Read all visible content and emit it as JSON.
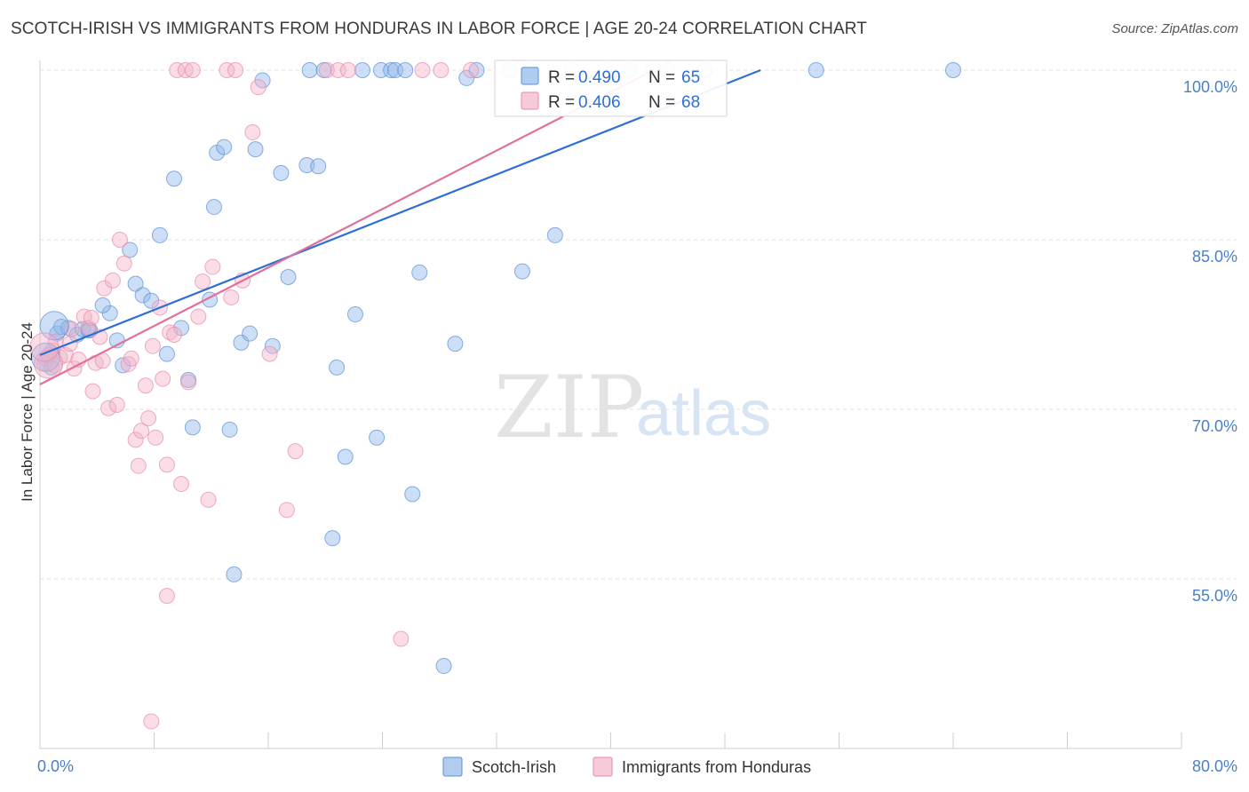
{
  "title": "SCOTCH-IRISH VS IMMIGRANTS FROM HONDURAS IN LABOR FORCE | AGE 20-24 CORRELATION CHART",
  "source": "Source: ZipAtlas.com",
  "watermark": {
    "zip": "ZIP",
    "atlas": "atlas"
  },
  "chart_data": {
    "type": "scatter",
    "ylabel": "In Labor Force | Age 20-24",
    "xlim": [
      0,
      80
    ],
    "ylim": [
      40,
      102.5
    ],
    "x_tick_labels": [
      {
        "value": 0,
        "label": "0.0%"
      },
      {
        "value": 80,
        "label": "80.0%"
      }
    ],
    "x_minor_ticks": [
      0,
      8,
      16,
      24,
      32,
      40,
      48,
      56,
      64,
      72,
      80
    ],
    "y_tick_labels": [
      {
        "value": 100,
        "label": "100.0%"
      },
      {
        "value": 85,
        "label": "85.0%"
      },
      {
        "value": 70,
        "label": "70.0%"
      },
      {
        "value": 55,
        "label": "55.0%"
      }
    ],
    "legend": [
      {
        "name": "Scotch-Irish",
        "r_label": "R =",
        "r": "0.490",
        "n_label": "N =",
        "n": "65",
        "color": "#8fb8ea",
        "line": "#2e6fd6"
      },
      {
        "name": "Immigrants from Honduras",
        "r_label": "R =",
        "r": "0.406",
        "n_label": "N =",
        "n": "68",
        "color": "#f4b3c8",
        "line": "#e0709a"
      }
    ],
    "series": [
      {
        "name": "Scotch-Irish",
        "color": "#8fb8ea",
        "trend": {
          "x": [
            0,
            50.5
          ],
          "y": [
            74.8,
            100.0
          ]
        },
        "points": [
          [
            0.4,
            74.5
          ],
          [
            0.8,
            73.7
          ],
          [
            1.2,
            76.7
          ],
          [
            1.5,
            77.3
          ],
          [
            2.0,
            77.2
          ],
          [
            2.6,
            76.6
          ],
          [
            3.0,
            77.1
          ],
          [
            3.5,
            77.0
          ],
          [
            4.9,
            78.5
          ],
          [
            4.4,
            79.2
          ],
          [
            5.4,
            76.1
          ],
          [
            5.8,
            73.9
          ],
          [
            6.3,
            84.1
          ],
          [
            6.7,
            81.1
          ],
          [
            7.2,
            80.1
          ],
          [
            7.8,
            79.6
          ],
          [
            8.4,
            85.4
          ],
          [
            8.9,
            74.9
          ],
          [
            9.4,
            90.4
          ],
          [
            9.9,
            77.2
          ],
          [
            10.4,
            72.6
          ],
          [
            10.7,
            68.4
          ],
          [
            11.9,
            79.7
          ],
          [
            12.2,
            87.9
          ],
          [
            12.4,
            92.7
          ],
          [
            12.9,
            93.2
          ],
          [
            13.3,
            68.2
          ],
          [
            13.6,
            55.4
          ],
          [
            14.1,
            75.9
          ],
          [
            14.7,
            76.7
          ],
          [
            15.1,
            93.0
          ],
          [
            15.6,
            99.1
          ],
          [
            16.3,
            75.6
          ],
          [
            16.9,
            90.9
          ],
          [
            17.4,
            81.7
          ],
          [
            18.7,
            91.6
          ],
          [
            18.9,
            100.0
          ],
          [
            19.5,
            91.5
          ],
          [
            19.9,
            100.0
          ],
          [
            20.5,
            58.6
          ],
          [
            20.8,
            73.7
          ],
          [
            21.4,
            65.8
          ],
          [
            22.1,
            78.4
          ],
          [
            22.6,
            100.0
          ],
          [
            23.6,
            67.5
          ],
          [
            23.9,
            100.0
          ],
          [
            24.6,
            100.0
          ],
          [
            24.9,
            100.0
          ],
          [
            25.6,
            100.0
          ],
          [
            26.1,
            62.5
          ],
          [
            26.6,
            82.1
          ],
          [
            28.3,
            47.3
          ],
          [
            29.1,
            75.8
          ],
          [
            29.9,
            99.3
          ],
          [
            30.6,
            100.0
          ],
          [
            32.9,
            100.0
          ],
          [
            33.8,
            82.2
          ],
          [
            34.4,
            100.0
          ],
          [
            36.1,
            85.4
          ],
          [
            41.3,
            100.0
          ],
          [
            44.0,
            100.0
          ],
          [
            46.6,
            100.0
          ],
          [
            54.4,
            100.0
          ],
          [
            64.0,
            100.0
          ],
          [
            3.4,
            77.0
          ]
        ]
      },
      {
        "name": "Immigrants from Honduras",
        "color": "#f4b3c8",
        "trend": {
          "x": [
            0,
            43.0
          ],
          "y": [
            72.2,
            100.0
          ]
        },
        "points": [
          [
            0.3,
            74.1
          ],
          [
            0.6,
            74.8
          ],
          [
            0.9,
            75.2
          ],
          [
            1.1,
            76.0
          ],
          [
            1.4,
            74.6
          ],
          [
            1.8,
            74.8
          ],
          [
            2.1,
            75.8
          ],
          [
            2.4,
            73.6
          ],
          [
            2.7,
            74.4
          ],
          [
            3.1,
            78.2
          ],
          [
            3.4,
            77.2
          ],
          [
            3.7,
            71.6
          ],
          [
            3.9,
            74.1
          ],
          [
            4.2,
            76.4
          ],
          [
            4.5,
            80.7
          ],
          [
            4.8,
            70.1
          ],
          [
            5.1,
            81.4
          ],
          [
            5.4,
            70.4
          ],
          [
            5.6,
            85.0
          ],
          [
            5.9,
            82.9
          ],
          [
            6.2,
            74.0
          ],
          [
            6.4,
            74.5
          ],
          [
            6.7,
            67.3
          ],
          [
            6.9,
            65.0
          ],
          [
            7.1,
            68.1
          ],
          [
            7.4,
            72.1
          ],
          [
            7.6,
            69.2
          ],
          [
            7.9,
            75.6
          ],
          [
            8.1,
            67.5
          ],
          [
            8.4,
            79.0
          ],
          [
            8.6,
            72.7
          ],
          [
            8.9,
            65.1
          ],
          [
            9.1,
            76.8
          ],
          [
            9.4,
            76.6
          ],
          [
            9.6,
            100.0
          ],
          [
            9.9,
            63.4
          ],
          [
            10.2,
            100.0
          ],
          [
            10.4,
            72.4
          ],
          [
            10.7,
            100.0
          ],
          [
            11.1,
            78.2
          ],
          [
            11.4,
            81.3
          ],
          [
            11.8,
            62.0
          ],
          [
            12.1,
            82.6
          ],
          [
            13.1,
            100.0
          ],
          [
            13.4,
            79.9
          ],
          [
            13.7,
            100.0
          ],
          [
            14.2,
            81.4
          ],
          [
            14.9,
            94.5
          ],
          [
            15.3,
            98.5
          ],
          [
            16.1,
            74.9
          ],
          [
            17.3,
            61.1
          ],
          [
            17.9,
            66.3
          ],
          [
            20.1,
            100.0
          ],
          [
            20.9,
            100.0
          ],
          [
            21.6,
            100.0
          ],
          [
            25.3,
            49.7
          ],
          [
            26.8,
            100.0
          ],
          [
            28.1,
            100.0
          ],
          [
            30.2,
            100.0
          ],
          [
            37.3,
            100.0
          ],
          [
            39.6,
            100.0
          ],
          [
            43.0,
            100.0
          ],
          [
            7.8,
            42.4
          ],
          [
            8.9,
            53.5
          ],
          [
            1.0,
            73.9
          ],
          [
            2.2,
            77.1
          ],
          [
            3.6,
            78.1
          ],
          [
            4.4,
            74.3
          ]
        ]
      }
    ],
    "big_points": [
      {
        "series": 0,
        "x": 1.0,
        "y": 77.4
      },
      {
        "series": 0,
        "x": 0.4,
        "y": 74.6
      },
      {
        "series": 1,
        "x": 0.6,
        "y": 74.0
      },
      {
        "series": 1,
        "x": 0.3,
        "y": 75.5
      }
    ]
  }
}
